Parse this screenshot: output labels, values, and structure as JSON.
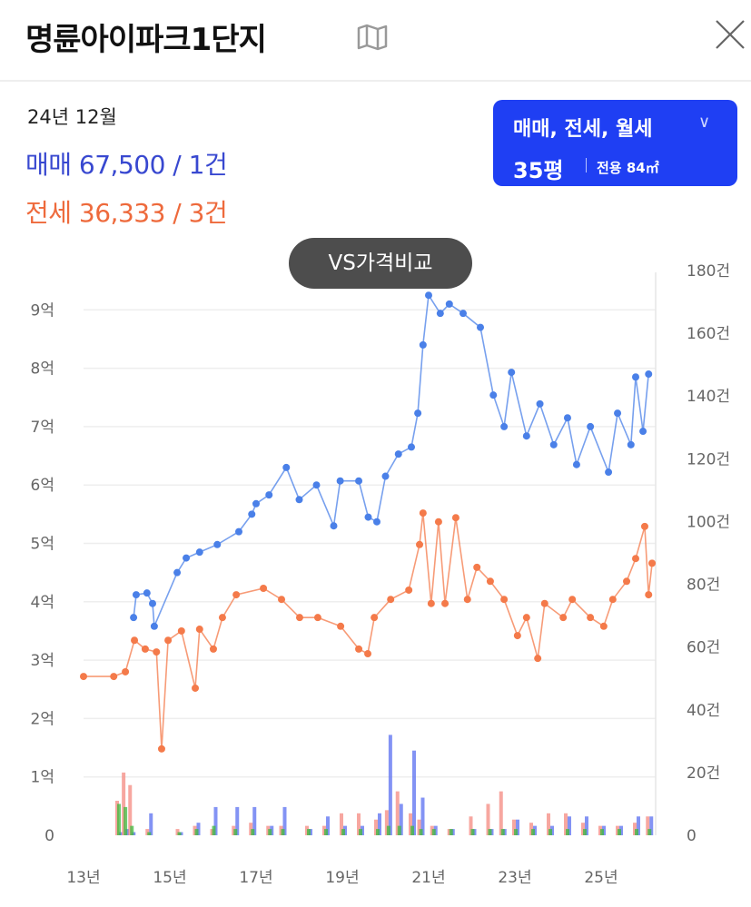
{
  "header": {
    "title": "명륜아이파크1단지",
    "map_icon": "map-icon",
    "close_icon": "close-icon"
  },
  "summary": {
    "date": "24년 12월",
    "sale": "매매 67,500 / 1건",
    "jeonse": "전세 36,333 / 3건"
  },
  "filter": {
    "types": "매매, 전세, 월세",
    "pyeong": "35평",
    "area": "전용 84㎡",
    "icon": "chevron-down-icon",
    "color": "#1f3ff3"
  },
  "compare_button": "VS가격비교",
  "chart_data": {
    "type": "line",
    "x_ticks": [
      "13년",
      "15년",
      "17년",
      "19년",
      "21년",
      "23년",
      "25년"
    ],
    "x_tick_years": [
      2013,
      2015,
      2017,
      2019,
      2021,
      2023,
      2025
    ],
    "xlim": [
      2013,
      2026.2
    ],
    "left_axis": {
      "ticks": [
        "0",
        "1억",
        "2억",
        "3억",
        "4억",
        "5억",
        "6억",
        "7억",
        "8억",
        "9억"
      ],
      "ylim": [
        0,
        9.5
      ],
      "unit": "억"
    },
    "right_axis": {
      "ticks": [
        "0",
        "20건",
        "40건",
        "60건",
        "80건",
        "100건",
        "120건",
        "140건",
        "160건",
        "180건"
      ],
      "ylim": [
        0,
        180
      ]
    },
    "grid": true,
    "series": [
      {
        "key": "sale",
        "color": "#4a80e8",
        "points": [
          [
            2014.16,
            3.73
          ],
          [
            2014.22,
            4.12
          ],
          [
            2014.47,
            4.15
          ],
          [
            2014.6,
            3.97
          ],
          [
            2014.64,
            3.58
          ],
          [
            2015.17,
            4.5
          ],
          [
            2015.38,
            4.75
          ],
          [
            2015.69,
            4.85
          ],
          [
            2016.1,
            4.98
          ],
          [
            2016.6,
            5.2
          ],
          [
            2016.9,
            5.5
          ],
          [
            2017.0,
            5.68
          ],
          [
            2017.3,
            5.83
          ],
          [
            2017.7,
            6.3
          ],
          [
            2018.0,
            5.75
          ],
          [
            2018.4,
            6.0
          ],
          [
            2018.8,
            5.3
          ],
          [
            2018.95,
            6.07
          ],
          [
            2019.38,
            6.07
          ],
          [
            2019.6,
            5.45
          ],
          [
            2019.8,
            5.37
          ],
          [
            2020.0,
            6.15
          ],
          [
            2020.3,
            6.53
          ],
          [
            2020.6,
            6.65
          ],
          [
            2020.75,
            7.23
          ],
          [
            2020.87,
            8.4
          ],
          [
            2021.0,
            9.25
          ],
          [
            2021.27,
            8.94
          ],
          [
            2021.48,
            9.1
          ],
          [
            2021.8,
            8.94
          ],
          [
            2022.2,
            8.7
          ],
          [
            2022.5,
            7.54
          ],
          [
            2022.75,
            7.0
          ],
          [
            2022.92,
            7.93
          ],
          [
            2023.27,
            6.84
          ],
          [
            2023.58,
            7.39
          ],
          [
            2023.9,
            6.69
          ],
          [
            2024.22,
            7.15
          ],
          [
            2024.43,
            6.35
          ],
          [
            2024.75,
            7.0
          ],
          [
            2025.17,
            6.22
          ],
          [
            2025.38,
            7.23
          ],
          [
            2025.69,
            6.69
          ],
          [
            2025.8,
            7.85
          ],
          [
            2025.97,
            6.92
          ],
          [
            2026.1,
            7.9
          ]
        ]
      },
      {
        "key": "jeonse",
        "color": "#f47a4a",
        "points": [
          [
            2013.0,
            2.72
          ],
          [
            2013.7,
            2.72
          ],
          [
            2013.97,
            2.8
          ],
          [
            2014.18,
            3.34
          ],
          [
            2014.43,
            3.19
          ],
          [
            2014.69,
            3.14
          ],
          [
            2014.81,
            1.48
          ],
          [
            2014.96,
            3.34
          ],
          [
            2015.27,
            3.5
          ],
          [
            2015.59,
            2.52
          ],
          [
            2015.69,
            3.53
          ],
          [
            2016.01,
            3.19
          ],
          [
            2016.22,
            3.73
          ],
          [
            2016.54,
            4.12
          ],
          [
            2017.17,
            4.23
          ],
          [
            2017.59,
            4.04
          ],
          [
            2018.01,
            3.73
          ],
          [
            2018.43,
            3.73
          ],
          [
            2018.96,
            3.58
          ],
          [
            2019.38,
            3.19
          ],
          [
            2019.59,
            3.11
          ],
          [
            2019.74,
            3.73
          ],
          [
            2020.12,
            4.04
          ],
          [
            2020.54,
            4.2
          ],
          [
            2020.79,
            4.98
          ],
          [
            2020.87,
            5.52
          ],
          [
            2021.06,
            3.97
          ],
          [
            2021.23,
            5.37
          ],
          [
            2021.38,
            3.97
          ],
          [
            2021.63,
            5.44
          ],
          [
            2021.9,
            4.04
          ],
          [
            2022.12,
            4.59
          ],
          [
            2022.43,
            4.35
          ],
          [
            2022.75,
            4.04
          ],
          [
            2023.06,
            3.42
          ],
          [
            2023.27,
            3.73
          ],
          [
            2023.53,
            3.03
          ],
          [
            2023.69,
            3.97
          ],
          [
            2024.12,
            3.73
          ],
          [
            2024.33,
            4.04
          ],
          [
            2024.75,
            3.73
          ],
          [
            2025.06,
            3.58
          ],
          [
            2025.27,
            4.04
          ],
          [
            2025.59,
            4.35
          ],
          [
            2025.8,
            4.74
          ],
          [
            2026.01,
            5.29
          ],
          [
            2026.1,
            4.12
          ],
          [
            2026.18,
            4.66
          ]
        ]
      }
    ],
    "volume": {
      "colors": {
        "sale": "#5a6ff0",
        "jeonse": "#f48a80",
        "wolse": "#3cb83c"
      },
      "years": [
        2013.8,
        2013.95,
        2014.1,
        2014.5,
        2015.2,
        2015.6,
        2016.0,
        2016.5,
        2016.9,
        2017.3,
        2017.6,
        2018.2,
        2018.6,
        2019.0,
        2019.4,
        2019.8,
        2020.05,
        2020.3,
        2020.6,
        2020.8,
        2021.1,
        2021.5,
        2022.0,
        2022.4,
        2022.7,
        2023.0,
        2023.4,
        2023.8,
        2024.2,
        2024.6,
        2025.0,
        2025.4,
        2025.8,
        2026.1
      ],
      "sale": [
        1,
        2,
        1,
        7,
        1,
        4,
        9,
        9,
        9,
        3,
        9,
        2,
        6,
        3,
        3,
        7,
        32,
        10,
        27,
        12,
        3,
        2,
        2,
        2,
        2,
        5,
        3,
        3,
        6,
        6,
        3,
        3,
        6,
        6
      ],
      "jeonse": [
        11,
        20,
        16,
        2,
        2,
        3,
        2,
        3,
        4,
        3,
        3,
        3,
        3,
        7,
        7,
        5,
        8,
        14,
        7,
        5,
        3,
        2,
        6,
        10,
        14,
        5,
        4,
        7,
        7,
        4,
        3,
        3,
        4,
        6
      ],
      "wolse": [
        10,
        9,
        3,
        1,
        1,
        2,
        3,
        2,
        2,
        2,
        2,
        2,
        2,
        2,
        2,
        2,
        3,
        3,
        3,
        2,
        2,
        2,
        2,
        2,
        2,
        2,
        2,
        2,
        2,
        2,
        2,
        2,
        2,
        2
      ]
    }
  }
}
